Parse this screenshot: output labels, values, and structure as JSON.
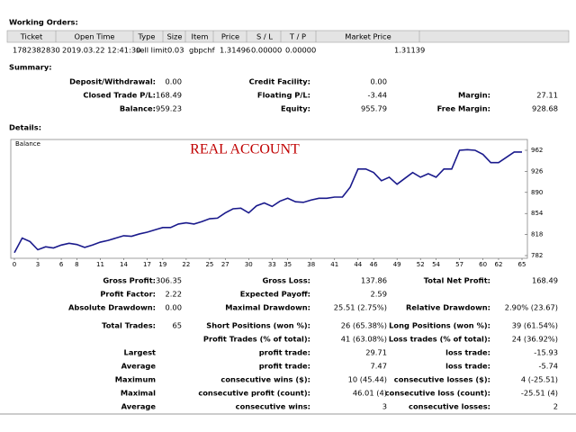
{
  "working_orders": {
    "title": "Working Orders:",
    "columns": [
      "Ticket",
      "Open Time",
      "Type",
      "Size",
      "Item",
      "Price",
      "S / L",
      "T / P",
      "Market Price"
    ],
    "rows": [
      [
        "1782382830",
        "2019.03.22 12:41:30",
        "sell limit",
        "0.03",
        "gbpchf",
        "1.31496",
        "0.00000",
        "0.00000",
        "1.31139"
      ]
    ]
  },
  "summary": {
    "title": "Summary:",
    "rows": [
      [
        "Deposit/Withdrawal:",
        "0.00",
        "Credit Facility:",
        "0.00",
        null,
        null
      ],
      [
        "Closed Trade P/L:",
        "168.49",
        "Floating P/L:",
        "-3.44",
        "Margin:",
        "27.11"
      ],
      [
        "Balance:",
        "959.23",
        "Equity:",
        "955.79",
        "Free Margin:",
        "928.68"
      ]
    ]
  },
  "details": {
    "title": "Details:",
    "chart": {
      "type": "line",
      "label": "Balance",
      "annotation": "REAL ACCOUNT",
      "color": "#1a1a8c",
      "x": [
        0,
        1,
        2,
        3,
        4,
        5,
        6,
        7,
        8,
        9,
        10,
        11,
        12,
        13,
        14,
        15,
        16,
        17,
        18,
        19,
        20,
        21,
        22,
        23,
        24,
        25,
        26,
        27,
        28,
        29,
        30,
        31,
        32,
        33,
        34,
        35,
        36,
        37,
        38,
        39,
        40,
        41,
        42,
        43,
        44,
        45,
        46,
        47,
        48,
        49,
        50,
        51,
        52,
        53,
        54,
        55,
        56,
        57,
        58,
        59,
        60,
        61,
        62,
        63,
        64,
        65
      ],
      "values": [
        787,
        812,
        806,
        792,
        797,
        795,
        800,
        803,
        801,
        796,
        800,
        805,
        808,
        812,
        816,
        815,
        819,
        822,
        826,
        830,
        830,
        836,
        838,
        836,
        840,
        845,
        846,
        855,
        862,
        863,
        855,
        867,
        872,
        866,
        875,
        880,
        874,
        873,
        877,
        880,
        880,
        882,
        882,
        899,
        930,
        930,
        924,
        910,
        916,
        904,
        914,
        924,
        916,
        922,
        916,
        930,
        930,
        962,
        963,
        962,
        955,
        941,
        941,
        950,
        959,
        959
      ],
      "xlim": [
        0,
        65
      ],
      "xticks": [
        0,
        3,
        6,
        8,
        11,
        14,
        17,
        19,
        22,
        25,
        27,
        30,
        33,
        35,
        38,
        41,
        44,
        46,
        49,
        52,
        54,
        57,
        60,
        62,
        65
      ],
      "ylim": [
        782,
        962
      ],
      "yticks": [
        782,
        818,
        854,
        890,
        926,
        962
      ]
    }
  },
  "stats": {
    "rows": [
      [
        "Gross Profit:",
        "306.35",
        "Gross Loss:",
        "137.86",
        "Total Net Profit:",
        "168.49"
      ],
      [
        "Profit Factor:",
        "2.22",
        "Expected Payoff:",
        "2.59",
        null,
        null
      ],
      [
        "Absolute Drawdown:",
        "0.00",
        "Maximal Drawdown:",
        "25.51 (2.75%)",
        "Relative Drawdown:",
        "2.90% (23.67)"
      ],
      [
        "Total Trades:",
        "65",
        "Short Positions (won %):",
        "26 (65.38%)",
        "Long Positions (won %):",
        "39 (61.54%)"
      ],
      [
        null,
        null,
        "Profit Trades (% of total):",
        "41 (63.08%)",
        "Loss trades (% of total):",
        "24 (36.92%)"
      ],
      [
        "Largest",
        null,
        "profit trade:",
        "29.71",
        "loss trade:",
        "-15.93"
      ],
      [
        "Average",
        null,
        "profit trade:",
        "7.47",
        "loss trade:",
        "-5.74"
      ],
      [
        "Maximum",
        null,
        "consecutive wins ($):",
        "10 (45.44)",
        "consecutive losses ($):",
        "4 (-25.51)"
      ],
      [
        "Maximal",
        null,
        "consecutive profit (count):",
        "46.01 (4)",
        "consecutive loss (count):",
        "-25.51 (4)"
      ],
      [
        "Average",
        null,
        "consecutive wins:",
        "3",
        "consecutive losses:",
        "2"
      ]
    ]
  }
}
